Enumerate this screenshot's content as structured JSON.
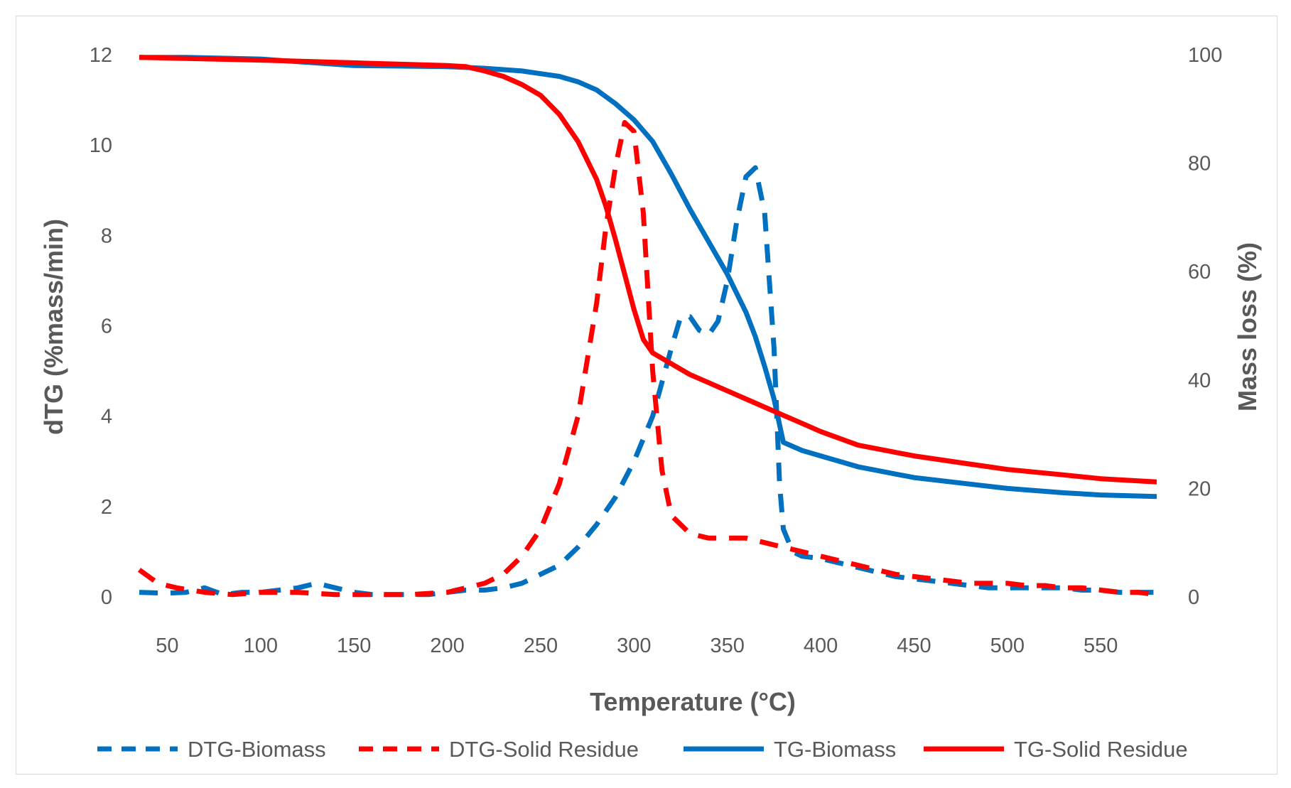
{
  "chart_data": {
    "type": "line",
    "title": "",
    "xlabel": "Temperature (°C)",
    "ylabel_left": "dTG (%mass/min)",
    "ylabel_right": "Mass loss (%)",
    "xlim": [
      35,
      580
    ],
    "ylim_left": [
      0,
      12
    ],
    "ylim_right": [
      0,
      100
    ],
    "x_ticks": [
      50,
      100,
      150,
      200,
      250,
      300,
      350,
      400,
      450,
      500,
      550
    ],
    "y_ticks_left": [
      0,
      2,
      4,
      6,
      8,
      10,
      12
    ],
    "y_ticks_right": [
      0,
      20,
      40,
      60,
      80,
      100
    ],
    "grid": false,
    "legend_position": "bottom",
    "series": [
      {
        "name": "DTG-Biomass",
        "axis": "left",
        "style": "dashed",
        "color": "#0070C0",
        "x": [
          35,
          50,
          60,
          70,
          80,
          90,
          100,
          110,
          120,
          130,
          140,
          150,
          160,
          170,
          180,
          190,
          200,
          210,
          220,
          230,
          240,
          250,
          260,
          270,
          280,
          290,
          300,
          310,
          320,
          325,
          330,
          335,
          340,
          345,
          350,
          355,
          360,
          365,
          370,
          375,
          378,
          380,
          385,
          390,
          400,
          410,
          420,
          430,
          440,
          450,
          460,
          470,
          480,
          490,
          500,
          510,
          520,
          530,
          540,
          550,
          560,
          570,
          580
        ],
        "values": [
          0.1,
          0.08,
          0.1,
          0.2,
          0.05,
          0.1,
          0.1,
          0.15,
          0.2,
          0.3,
          0.2,
          0.1,
          0.05,
          0.05,
          0.05,
          0.05,
          0.1,
          0.15,
          0.15,
          0.2,
          0.3,
          0.5,
          0.7,
          1.1,
          1.6,
          2.2,
          3.0,
          4.0,
          5.5,
          6.2,
          6.2,
          5.9,
          5.8,
          6.1,
          7.0,
          8.3,
          9.3,
          9.5,
          8.5,
          5.5,
          2.5,
          1.5,
          1.0,
          0.9,
          0.85,
          0.75,
          0.65,
          0.55,
          0.45,
          0.4,
          0.35,
          0.3,
          0.25,
          0.2,
          0.2,
          0.2,
          0.2,
          0.2,
          0.15,
          0.15,
          0.1,
          0.1,
          0.1
        ]
      },
      {
        "name": "DTG-Solid Residue",
        "axis": "left",
        "style": "dashed",
        "color": "#FF0000",
        "x": [
          35,
          45,
          55,
          70,
          85,
          100,
          120,
          140,
          160,
          180,
          200,
          210,
          220,
          230,
          240,
          250,
          260,
          270,
          280,
          285,
          290,
          295,
          300,
          305,
          310,
          315,
          320,
          330,
          340,
          350,
          360,
          370,
          380,
          390,
          400,
          410,
          420,
          430,
          440,
          450,
          460,
          470,
          480,
          490,
          500,
          510,
          520,
          530,
          540,
          550,
          560,
          570,
          580
        ],
        "values": [
          0.6,
          0.3,
          0.2,
          0.1,
          0.05,
          0.1,
          0.1,
          0.05,
          0.05,
          0.05,
          0.1,
          0.2,
          0.3,
          0.5,
          0.9,
          1.5,
          2.5,
          4.0,
          6.5,
          8.2,
          9.5,
          10.5,
          10.3,
          8.5,
          5.0,
          2.8,
          1.8,
          1.4,
          1.3,
          1.3,
          1.3,
          1.2,
          1.1,
          1.0,
          0.9,
          0.8,
          0.7,
          0.6,
          0.5,
          0.45,
          0.4,
          0.35,
          0.3,
          0.3,
          0.3,
          0.25,
          0.25,
          0.2,
          0.2,
          0.15,
          0.1,
          0.1,
          0.05
        ]
      },
      {
        "name": "TG-Biomass",
        "axis": "right",
        "style": "solid",
        "color": "#0070C0",
        "x": [
          35,
          60,
          100,
          150,
          200,
          220,
          240,
          260,
          270,
          280,
          290,
          300,
          310,
          320,
          330,
          340,
          350,
          360,
          365,
          370,
          375,
          380,
          390,
          400,
          420,
          450,
          480,
          500,
          530,
          550,
          580
        ],
        "values": [
          99.5,
          99.5,
          99.2,
          98.0,
          97.8,
          97.5,
          97.0,
          96.0,
          95.0,
          93.5,
          91.0,
          88.0,
          84.0,
          78.0,
          71.5,
          65.5,
          59.5,
          52.5,
          48.0,
          42.5,
          36.5,
          28.5,
          27.0,
          26.0,
          24.0,
          22.0,
          20.8,
          20.0,
          19.2,
          18.8,
          18.5
        ]
      },
      {
        "name": "TG-Solid Residue",
        "axis": "right",
        "style": "solid",
        "color": "#FF0000",
        "x": [
          35,
          60,
          100,
          150,
          200,
          210,
          220,
          230,
          240,
          250,
          260,
          270,
          280,
          285,
          290,
          295,
          300,
          305,
          310,
          320,
          330,
          340,
          350,
          360,
          370,
          380,
          390,
          400,
          420,
          450,
          480,
          500,
          530,
          550,
          580
        ],
        "values": [
          99.5,
          99.3,
          99.0,
          98.5,
          98.0,
          97.8,
          97.0,
          96.0,
          94.5,
          92.5,
          89.0,
          84.0,
          77.0,
          72.0,
          66.0,
          59.5,
          53.0,
          47.5,
          45.0,
          43.0,
          41.0,
          39.5,
          38.0,
          36.5,
          35.0,
          33.5,
          32.0,
          30.5,
          28.0,
          26.0,
          24.5,
          23.5,
          22.5,
          21.8,
          21.2
        ]
      }
    ]
  }
}
